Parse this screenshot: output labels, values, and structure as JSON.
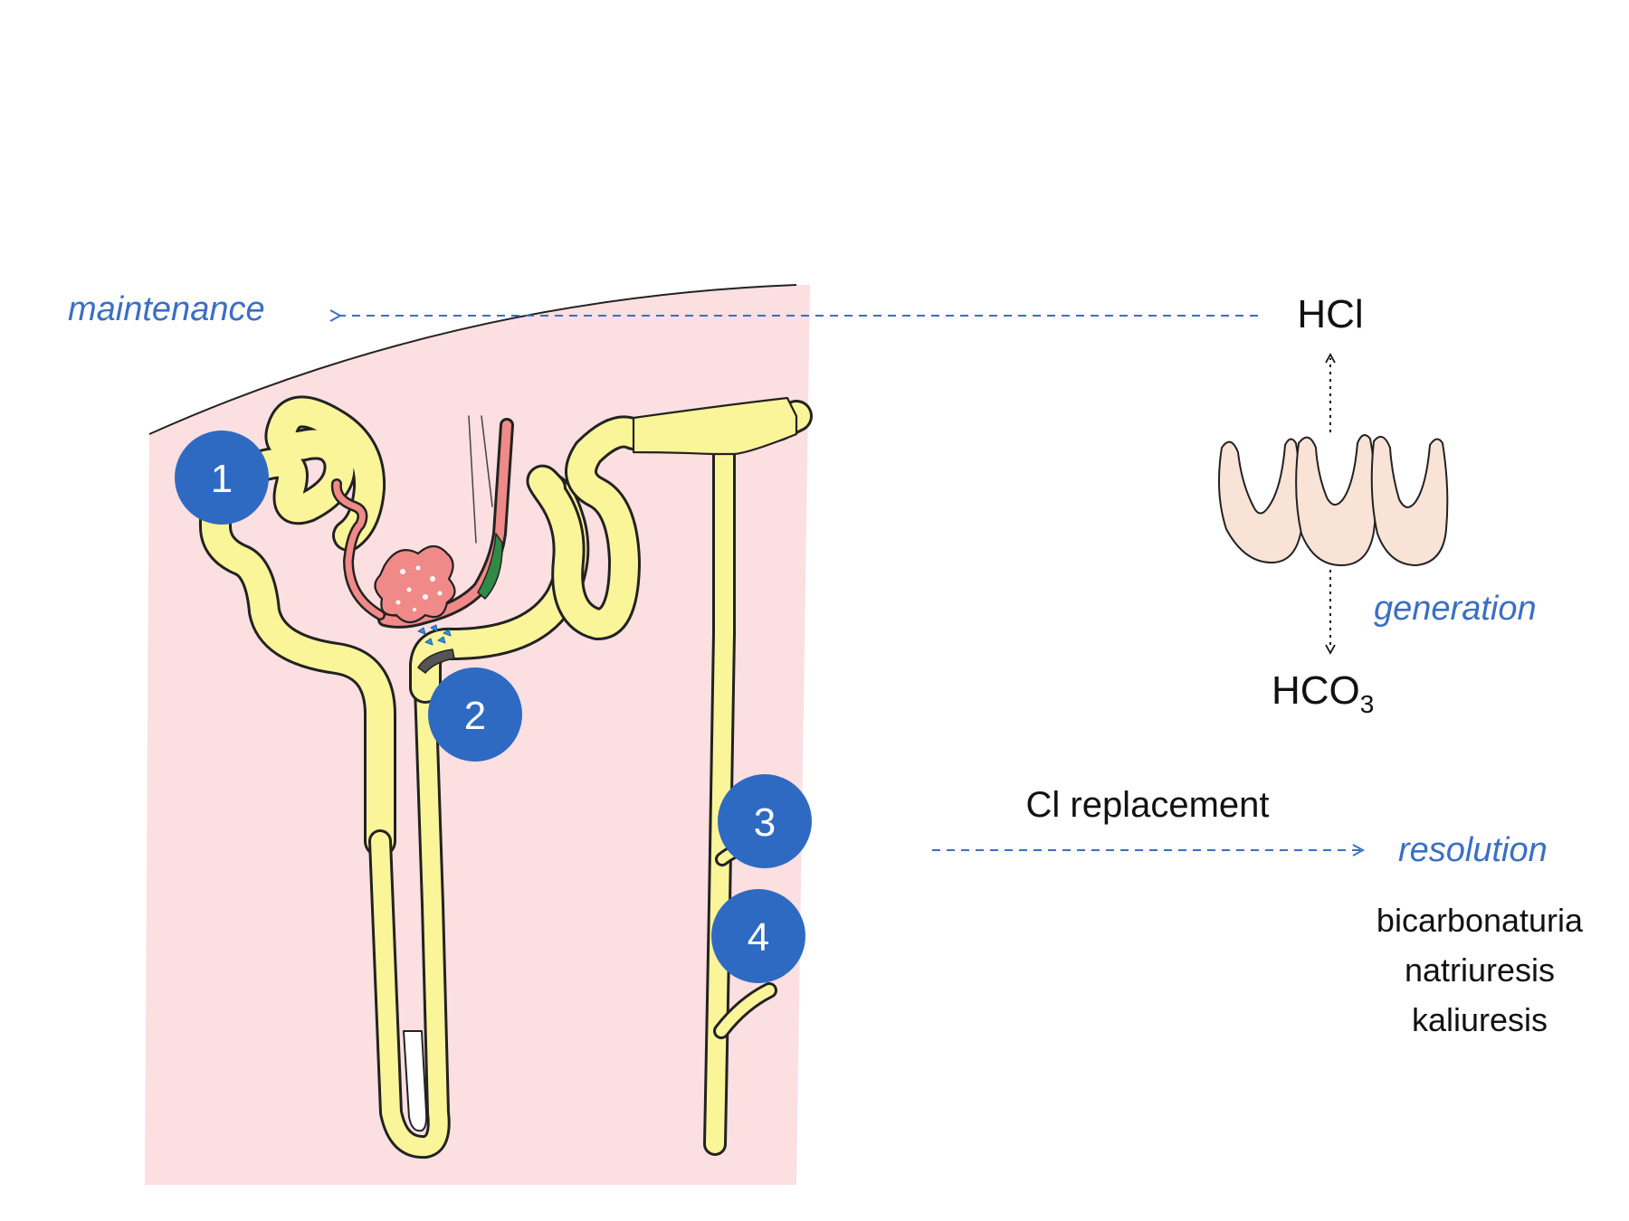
{
  "colors": {
    "cortex_fill": "#fcdfe1",
    "tubule_fill": "#fbf59a",
    "glomerulus_fill": "#f08a88",
    "badge_fill": "#2f6ac2",
    "accent_blue": "#3a6fc4",
    "stomach_cell_fill": "#f9e2d6",
    "text": "#111111"
  },
  "labels": {
    "maintenance": "maintenance",
    "generation": "generation",
    "resolution": "resolution",
    "hcl": "HCl",
    "hco3_main": "HCO",
    "hco3_sub": "3",
    "cl_replacement": "Cl replacement",
    "outcomes": [
      "bicarbonaturia",
      "natriuresis",
      "kaliuresis"
    ]
  },
  "badges": [
    "1",
    "2",
    "3",
    "4"
  ]
}
